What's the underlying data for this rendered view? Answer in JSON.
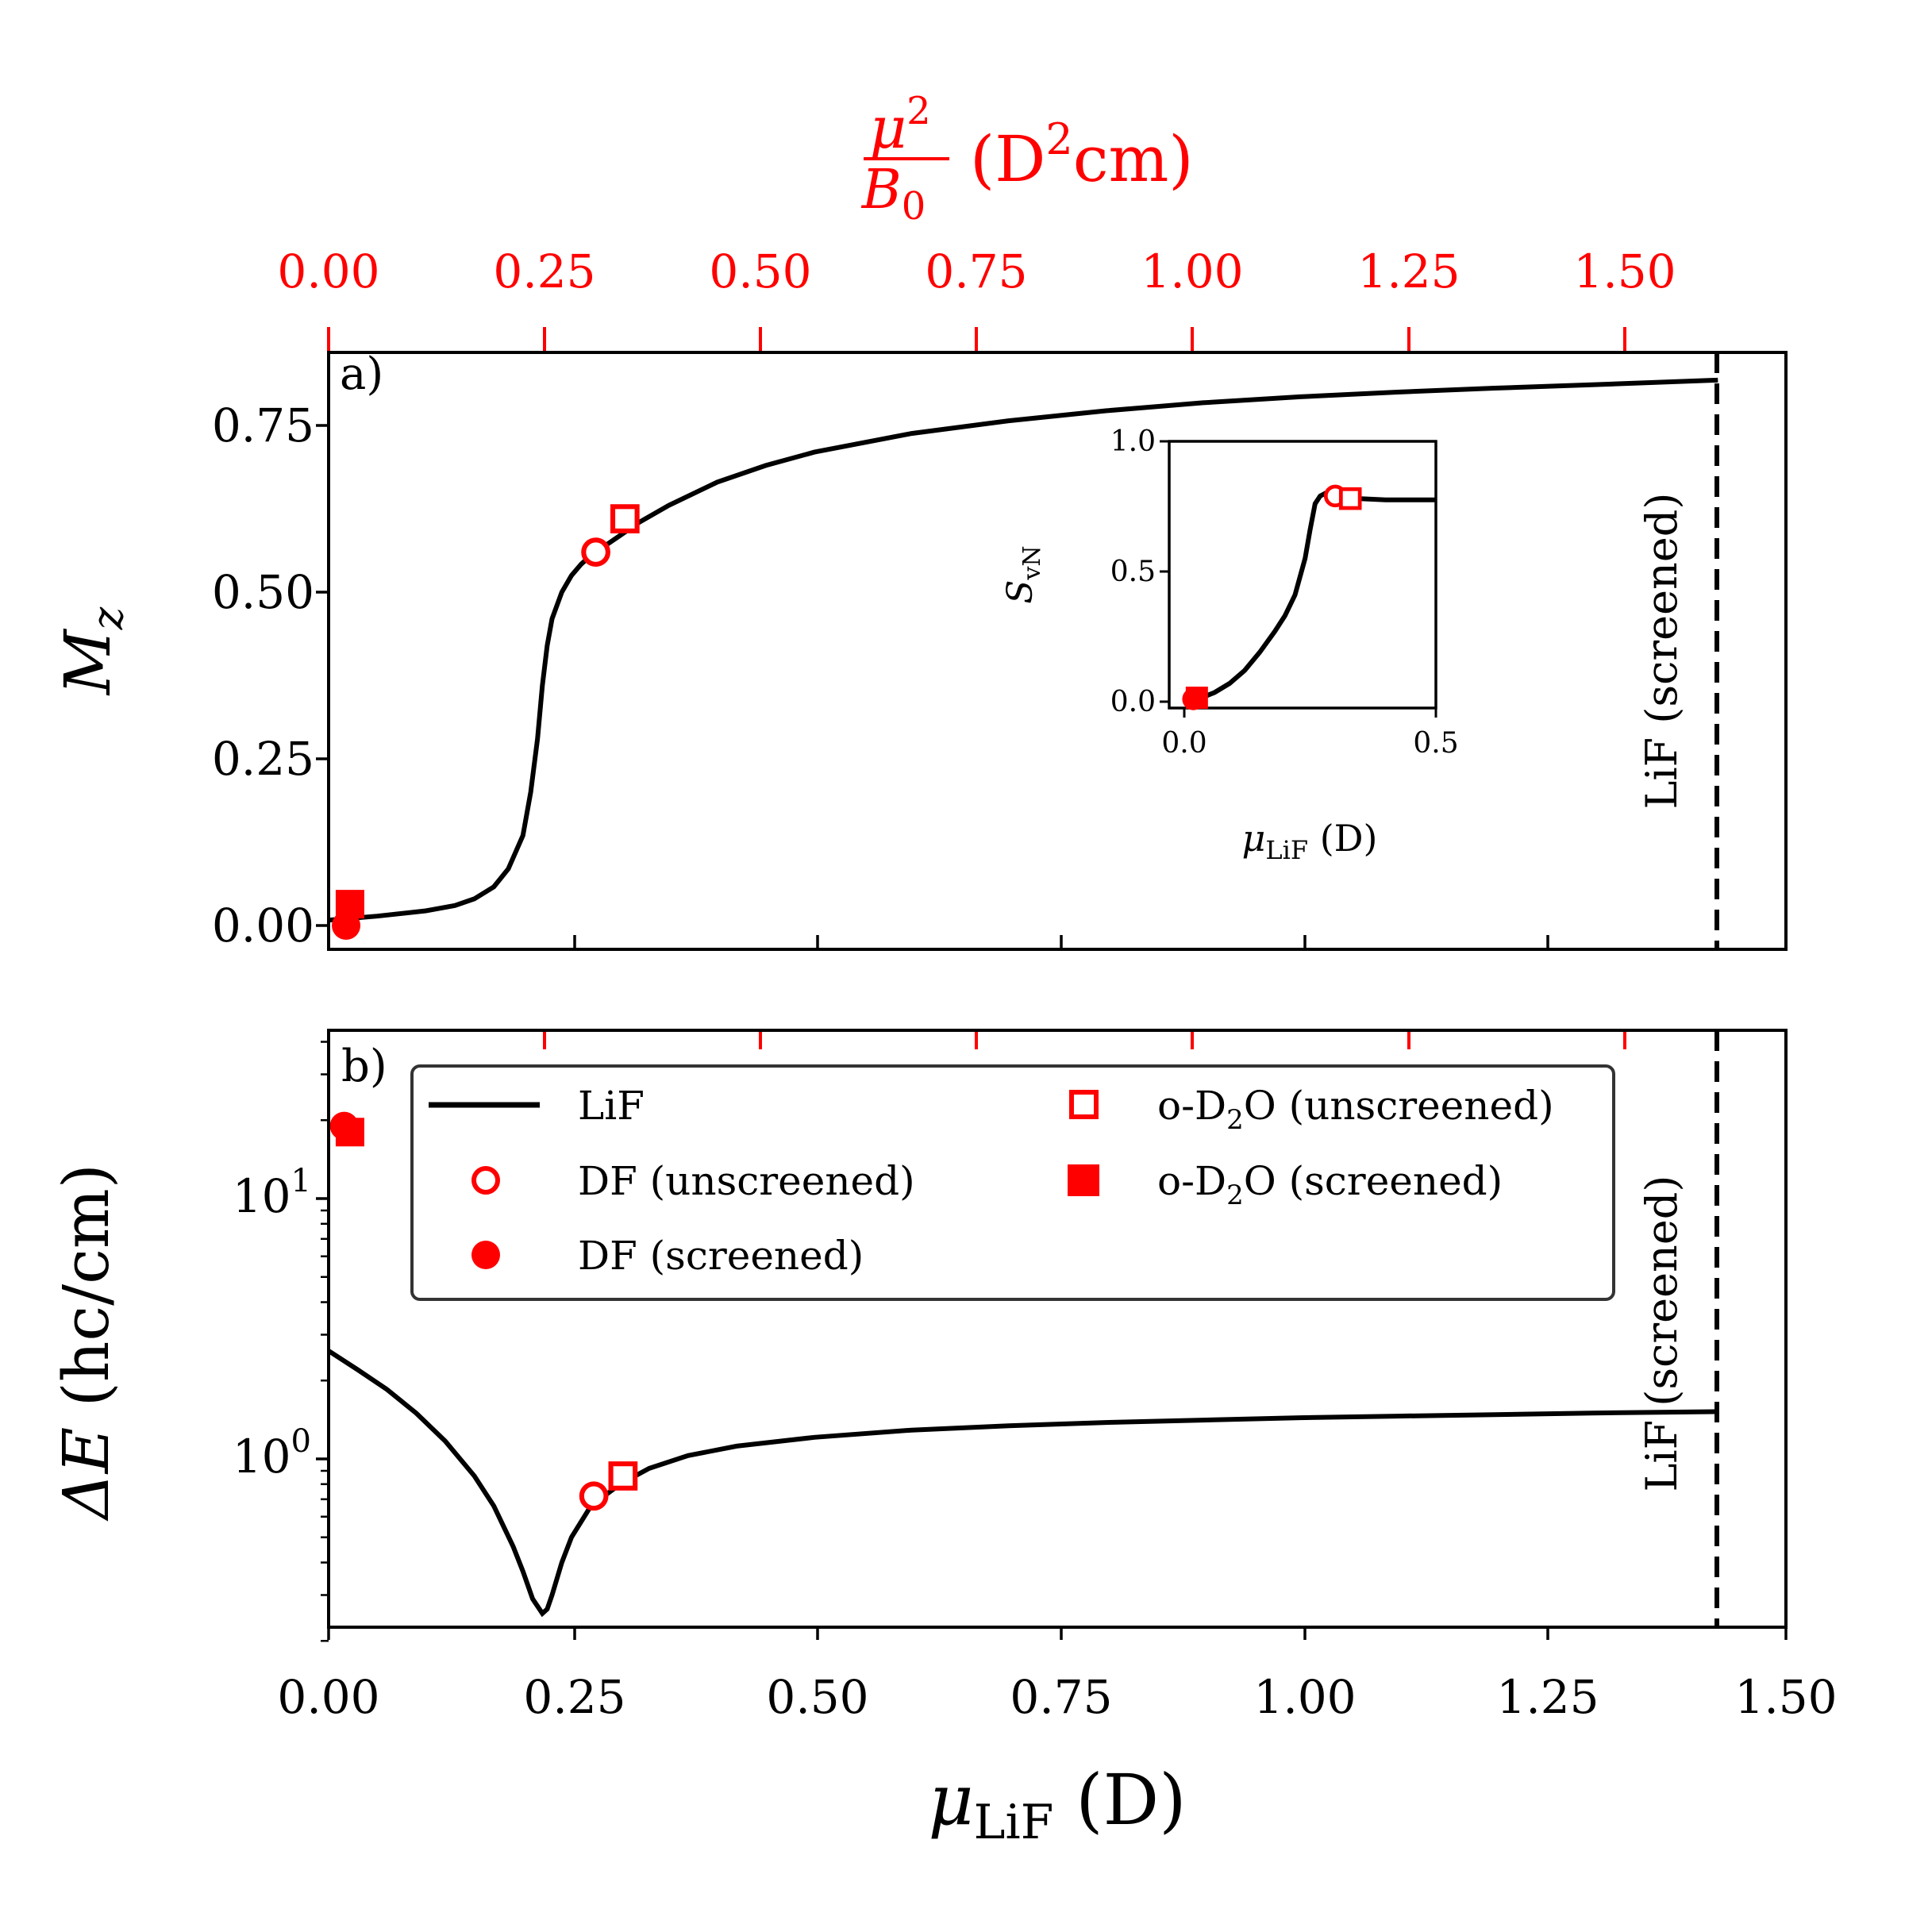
{
  "colors": {
    "line": "#000000",
    "marker": "#ff0000",
    "secondary_axis": "#ff0000"
  },
  "top_axis": {
    "label_num": "μ",
    "label_num_sup": "2",
    "label_den": "B",
    "label_den_sub": "0",
    "label_units_open": "(D",
    "label_units_sup": "2",
    "label_units_close": "cm)",
    "ticks": [
      "0.00",
      "0.25",
      "0.50",
      "0.75",
      "1.00",
      "1.25",
      "1.50"
    ]
  },
  "panel_a": {
    "letter": "a)",
    "ylabel": "M",
    "ylabel_sub": "z",
    "yticks": [
      "0.00",
      "0.25",
      "0.50",
      "0.75"
    ],
    "vline_label": "LiF (screened)"
  },
  "panel_b": {
    "letter": "b)",
    "ylabel_delta": "ΔE",
    "ylabel_units": " (hc/cm)",
    "ytick_base": "10",
    "ytick_exps": [
      "0",
      "1"
    ],
    "vline_label": "LiF (screened)"
  },
  "inset": {
    "ylabel": "S",
    "ylabel_sub": "vN",
    "xlabel": "μ",
    "xlabel_sub": "LiF",
    "xlabel_units": " (D)",
    "xticks": [
      "0.0",
      "0.5"
    ],
    "yticks": [
      "0.0",
      "0.5",
      "1.0"
    ]
  },
  "x_axis": {
    "label": "μ",
    "label_sub": "LiF",
    "label_units": " (D)",
    "ticks": [
      "0.00",
      "0.25",
      "0.50",
      "0.75",
      "1.00",
      "1.25",
      "1.50"
    ]
  },
  "legend": {
    "lif": "LiF",
    "df_unscreened": "DF (unscreened)",
    "df_screened": "DF (screened)",
    "od2o_unscreened_a": "o-D",
    "od2o_unscreened_sub": "2",
    "od2o_unscreened_b": "O (unscreened)",
    "od2o_screened_a": "o-D",
    "od2o_screened_sub": "2",
    "od2o_screened_b": "O (screened)"
  },
  "chart_data": {
    "type": "line",
    "x_axis": {
      "label": "μ_LiF (D)",
      "range": [
        0,
        1.5
      ],
      "ticks": [
        0,
        0.25,
        0.5,
        0.75,
        1.0,
        1.25,
        1.5
      ]
    },
    "top_axis": {
      "label": "μ²/B₀ (D²cm)",
      "range": [
        0,
        1.7
      ],
      "ticks": [
        0,
        0.25,
        0.5,
        0.75,
        1.0,
        1.25,
        1.5
      ]
    },
    "vline": {
      "x": 1.43,
      "label": "LiF (screened)",
      "style": "dashed"
    },
    "panels": [
      {
        "name": "a",
        "ylabel": "M_z",
        "ylim": [
          -0.04,
          0.86
        ],
        "yticks": [
          0,
          0.25,
          0.5,
          0.75
        ],
        "series": [
          {
            "name": "LiF",
            "x": [
              0,
              0.05,
              0.1,
              0.13,
              0.15,
              0.17,
              0.185,
              0.2,
              0.208,
              0.215,
              0.22,
              0.225,
              0.23,
              0.24,
              0.25,
              0.26,
              0.27,
              0.28,
              0.3,
              0.32,
              0.35,
              0.4,
              0.45,
              0.5,
              0.6,
              0.7,
              0.8,
              0.9,
              1.0,
              1.1,
              1.2,
              1.3,
              1.43
            ],
            "y": [
              0.008,
              0.014,
              0.022,
              0.03,
              0.04,
              0.058,
              0.085,
              0.135,
              0.2,
              0.28,
              0.36,
              0.42,
              0.46,
              0.5,
              0.525,
              0.542,
              0.555,
              0.565,
              0.585,
              0.605,
              0.63,
              0.665,
              0.69,
              0.71,
              0.738,
              0.757,
              0.772,
              0.784,
              0.793,
              0.8,
              0.806,
              0.811,
              0.818
            ]
          }
        ],
        "markers": [
          {
            "name": "DF (unscreened)",
            "x": 0.275,
            "y": 0.56,
            "style": "open-circle"
          },
          {
            "name": "o-D2O (unscreened)",
            "x": 0.305,
            "y": 0.61,
            "style": "open-square"
          },
          {
            "name": "DF (screened)",
            "x": 0.018,
            "y": 0.0,
            "style": "filled-circle"
          },
          {
            "name": "o-D2O (screened)",
            "x": 0.022,
            "y": 0.032,
            "style": "filled-square"
          }
        ]
      },
      {
        "name": "b",
        "ylabel": "ΔE (hc/cm)",
        "yscale": "log",
        "ylim": [
          0.2,
          40
        ],
        "series": [
          {
            "name": "LiF",
            "x": [
              0,
              0.03,
              0.06,
              0.09,
              0.12,
              0.15,
              0.17,
              0.19,
              0.2,
              0.21,
              0.22,
              0.225,
              0.23,
              0.24,
              0.25,
              0.27,
              0.3,
              0.33,
              0.37,
              0.42,
              0.5,
              0.6,
              0.7,
              0.8,
              0.9,
              1.0,
              1.1,
              1.2,
              1.3,
              1.43
            ],
            "y": [
              2.6,
              2.2,
              1.85,
              1.5,
              1.17,
              0.86,
              0.66,
              0.46,
              0.37,
              0.29,
              0.255,
              0.265,
              0.3,
              0.4,
              0.5,
              0.66,
              0.8,
              0.92,
              1.03,
              1.12,
              1.21,
              1.29,
              1.34,
              1.38,
              1.41,
              1.44,
              1.46,
              1.48,
              1.5,
              1.52
            ]
          }
        ],
        "markers": [
          {
            "name": "DF (unscreened)",
            "x": 0.273,
            "y": 0.72,
            "style": "open-circle"
          },
          {
            "name": "o-D2O (unscreened)",
            "x": 0.303,
            "y": 0.86,
            "style": "open-square"
          },
          {
            "name": "DF (screened)",
            "x": 0.016,
            "y": 19,
            "style": "filled-circle"
          },
          {
            "name": "o-D2O (screened)",
            "x": 0.022,
            "y": 18,
            "style": "filled-square"
          }
        ]
      },
      {
        "name": "inset",
        "ylabel": "S_vN",
        "xlabel": "μ_LiF (D)",
        "xlim": [
          -0.03,
          0.5
        ],
        "ylim": [
          -0.05,
          1.0
        ],
        "xticks": [
          0,
          0.5
        ],
        "yticks": [
          0,
          0.5,
          1.0
        ],
        "series": [
          {
            "name": "LiF",
            "x": [
              0,
              0.03,
              0.06,
              0.09,
              0.12,
              0.15,
              0.18,
              0.2,
              0.22,
              0.24,
              0.25,
              0.26,
              0.27,
              0.28,
              0.3,
              0.35,
              0.4,
              0.45,
              0.5
            ],
            "y": [
              0,
              0.012,
              0.035,
              0.07,
              0.12,
              0.19,
              0.27,
              0.33,
              0.41,
              0.55,
              0.66,
              0.76,
              0.79,
              0.8,
              0.79,
              0.78,
              0.775,
              0.775,
              0.775
            ]
          }
        ],
        "markers": [
          {
            "name": "DF (unscreened)",
            "x": 0.3,
            "y": 0.79,
            "style": "open-circle"
          },
          {
            "name": "o-D2O (unscreened)",
            "x": 0.33,
            "y": 0.78,
            "style": "open-square"
          },
          {
            "name": "DF (screened)",
            "x": 0.018,
            "y": 0.01,
            "style": "filled-circle"
          },
          {
            "name": "o-D2O (screened)",
            "x": 0.025,
            "y": 0.015,
            "style": "filled-square"
          }
        ]
      }
    ]
  }
}
